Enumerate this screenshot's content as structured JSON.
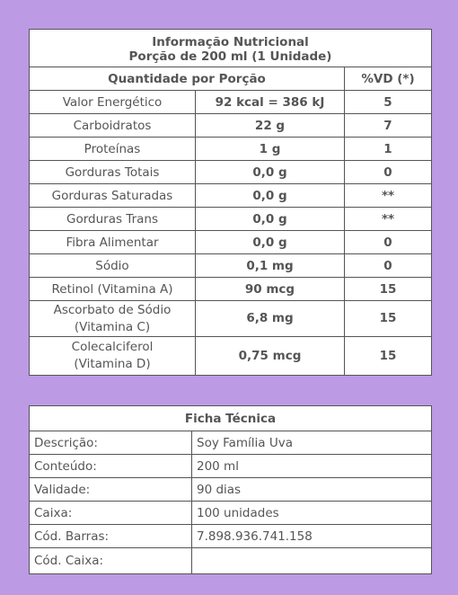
{
  "nutrition": {
    "title_line1": "Informação Nutricional",
    "title_line2": "Porção de 200 ml (1 Unidade)",
    "header_quantity": "Quantidade por Porção",
    "header_vd": "%VD (*)",
    "rows": [
      {
        "name": "Valor Energético",
        "qty": "92 kcal = 386 kJ",
        "vd": "5"
      },
      {
        "name": "Carboidratos",
        "qty": "22 g",
        "vd": "7"
      },
      {
        "name": "Proteínas",
        "qty": "1 g",
        "vd": "1"
      },
      {
        "name": "Gorduras Totais",
        "qty": "0,0 g",
        "vd": "0"
      },
      {
        "name": "Gorduras Saturadas",
        "qty": "0,0 g",
        "vd": "**"
      },
      {
        "name": "Gorduras Trans",
        "qty": "0,0 g",
        "vd": "**"
      },
      {
        "name": "Fibra Alimentar",
        "qty": "0,0 g",
        "vd": "0"
      },
      {
        "name": "Sódio",
        "qty": "0,1 mg",
        "vd": "0"
      },
      {
        "name": "Retinol (Vitamina A)",
        "qty": "90 mcg",
        "vd": "15"
      },
      {
        "name_line1": "Ascorbato de Sódio",
        "name_line2": "(Vitamina C)",
        "qty": "6,8 mg",
        "vd": "15"
      },
      {
        "name_line1": "Colecalciferol",
        "name_line2": "(Vitamina D)",
        "qty": "0,75 mcg",
        "vd": "15"
      }
    ]
  },
  "ficha": {
    "title": "Ficha Técnica",
    "rows": [
      {
        "label": "Descrição:",
        "value": "Soy Família Uva"
      },
      {
        "label": "Conteúdo:",
        "value": "200 ml"
      },
      {
        "label": "Validade:",
        "value": "90 dias"
      },
      {
        "label": "Caixa:",
        "value": "100 unidades"
      },
      {
        "label": "Cód. Barras:",
        "value": "7.898.936.741.158"
      },
      {
        "label": "Cód. Caixa:",
        "value": ""
      }
    ]
  },
  "colors": {
    "background": "#bc9ae4",
    "text": "#555555",
    "border": "#555555"
  }
}
